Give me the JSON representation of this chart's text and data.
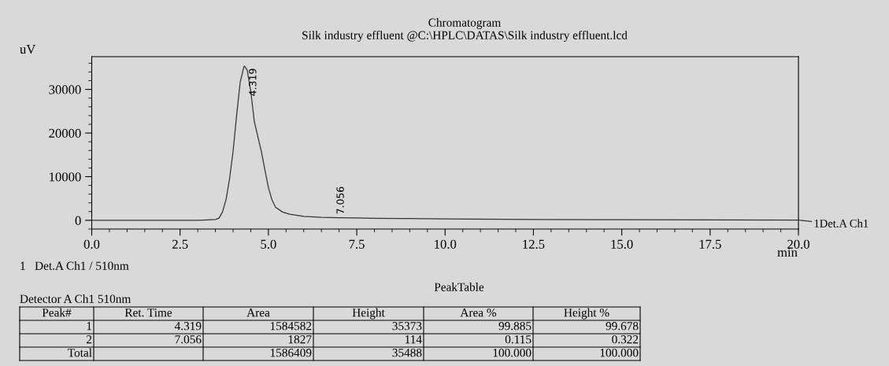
{
  "chart_data": {
    "type": "line",
    "title": "Chromatogram",
    "subtitle": "Silk industry effluent @C:\\HPLC\\DATAS\\Silk industry effluent.lcd",
    "xlabel": "min",
    "ylabel": "uV",
    "xlim": [
      0,
      20
    ],
    "xticks": [
      {
        "value": 0,
        "label": "0.0"
      },
      2.5,
      {
        "value": 5,
        "label": "5.0"
      },
      7.5,
      {
        "value": 10,
        "label": "10.0"
      },
      12.5,
      {
        "value": 15,
        "label": "15.0"
      },
      17.5,
      {
        "value": 20,
        "label": "20.0"
      }
    ],
    "ylim": [
      -2000,
      37500
    ],
    "yticks": [
      0,
      10000,
      20000,
      30000
    ],
    "grid": false,
    "series": [
      {
        "name": "1Det.A Ch1",
        "color": "#333333",
        "x": [
          0,
          1,
          2,
          3,
          3.5,
          3.6,
          3.7,
          3.8,
          3.9,
          4.0,
          4.1,
          4.2,
          4.3,
          4.32,
          4.4,
          4.5,
          4.6,
          4.7,
          4.8,
          4.9,
          5.0,
          5.1,
          5.2,
          5.4,
          5.6,
          6.0,
          6.5,
          7.0,
          7.5,
          8.0,
          9.0,
          10.0,
          12.5,
          15.0,
          17.5,
          20.0
        ],
        "values": [
          0,
          0,
          0,
          0,
          200,
          500,
          1900,
          4700,
          9500,
          15800,
          24000,
          31600,
          35000,
          35373,
          34400,
          29600,
          22700,
          19200,
          15800,
          11600,
          7500,
          4700,
          3000,
          1900,
          1400,
          900,
          700,
          600,
          550,
          480,
          400,
          300,
          200,
          150,
          100,
          50
        ]
      }
    ],
    "annotations": [
      {
        "text": "4.319",
        "x": 4.319,
        "y": 35373
      },
      {
        "text": "7.056",
        "x": 7.056,
        "y": 600
      },
      "1   Det.A Ch1 / 510nm",
      "PeakTable",
      "Detector A Ch1 510nm",
      "Peak#",
      "Ret. Time",
      "Area",
      "Height",
      "Area %",
      "Height %",
      "1",
      "4.319",
      "1584582",
      "35373",
      "99.885",
      "99.678",
      "2",
      "7.056",
      "1827",
      "114",
      "0.115",
      "0.322",
      "Total",
      "1586409",
      "35488",
      "100.000",
      "100.000"
    ]
  }
}
